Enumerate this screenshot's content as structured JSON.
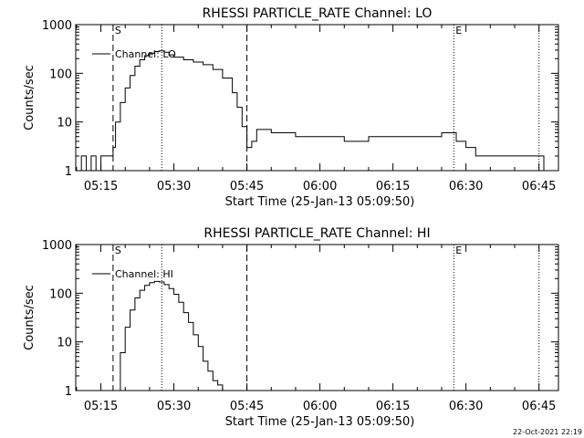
{
  "chart_data": [
    {
      "type": "line",
      "title": "RHESSI PARTICLE_RATE Channel: LO",
      "xlabel": "Start Time (25-Jan-13 05:09:50)",
      "ylabel": "Counts/sec",
      "yscale": "log",
      "ylim": [
        1,
        1000
      ],
      "xlim": [
        "05:09:50",
        "06:49:00"
      ],
      "x_ticks": [
        "05:15",
        "05:30",
        "05:45",
        "06:00",
        "06:15",
        "06:30",
        "06:45"
      ],
      "y_ticks": [
        "1",
        "10",
        "100",
        "1000"
      ],
      "legend": {
        "label": "Channel: LO",
        "position": "top-left"
      },
      "markers": [
        {
          "label": "S",
          "time": "05:17:30",
          "style": "dashed"
        },
        {
          "label": "",
          "time": "05:45:00",
          "style": "dashed"
        },
        {
          "label": "",
          "time": "05:27:30",
          "style": "dotted"
        },
        {
          "label": "E",
          "time": "06:27:30",
          "style": "dotted"
        },
        {
          "label": "",
          "time": "06:45:00",
          "style": "dotted"
        }
      ],
      "series": [
        {
          "name": "Channel: LO",
          "x": [
            "05:10:00",
            "05:11:00",
            "05:12:00",
            "05:13:00",
            "05:14:00",
            "05:15:00",
            "05:16:00",
            "05:17:00",
            "05:17:30",
            "05:18:00",
            "05:19:00",
            "05:20:00",
            "05:21:00",
            "05:22:00",
            "05:23:00",
            "05:24:00",
            "05:25:00",
            "05:26:00",
            "05:27:00",
            "05:28:00",
            "05:29:00",
            "05:30:00",
            "05:32:00",
            "05:34:00",
            "05:36:00",
            "05:38:00",
            "05:40:00",
            "05:42:00",
            "05:43:00",
            "05:44:00",
            "05:45:00",
            "05:46:00",
            "05:47:00",
            "05:50:00",
            "05:55:00",
            "06:00:00",
            "06:05:00",
            "06:10:00",
            "06:15:00",
            "06:20:00",
            "06:25:00",
            "06:27:30",
            "06:28:00",
            "06:29:00",
            "06:30:00",
            "06:31:00",
            "06:32:00",
            "06:34:00",
            "06:36:00",
            "06:38:00",
            "06:40:00",
            "06:42:00",
            "06:44:00",
            "06:46:00"
          ],
          "y": [
            1,
            2,
            1,
            2,
            1,
            2,
            2,
            2,
            3,
            10,
            25,
            50,
            90,
            140,
            190,
            230,
            260,
            280,
            290,
            270,
            240,
            215,
            190,
            170,
            150,
            120,
            80,
            40,
            20,
            8,
            3,
            4,
            7,
            6,
            5,
            5,
            4,
            5,
            5,
            5,
            6,
            6,
            4,
            4,
            3,
            3,
            2,
            2,
            2,
            2,
            2,
            2,
            2,
            1
          ]
        }
      ]
    },
    {
      "type": "line",
      "title": "RHESSI PARTICLE_RATE Channel: HI",
      "xlabel": "Start Time (25-Jan-13 05:09:50)",
      "ylabel": "Counts/sec",
      "yscale": "log",
      "ylim": [
        1,
        1000
      ],
      "xlim": [
        "05:09:50",
        "06:49:00"
      ],
      "x_ticks": [
        "05:15",
        "05:30",
        "05:45",
        "06:00",
        "06:15",
        "06:30",
        "06:45"
      ],
      "y_ticks": [
        "1",
        "10",
        "100",
        "1000"
      ],
      "legend": {
        "label": "Channel: HI",
        "position": "top-left"
      },
      "markers": [
        {
          "label": "S",
          "time": "05:17:30",
          "style": "dashed"
        },
        {
          "label": "",
          "time": "05:45:00",
          "style": "dashed"
        },
        {
          "label": "",
          "time": "05:27:30",
          "style": "dotted"
        },
        {
          "label": "E",
          "time": "06:27:30",
          "style": "dotted"
        },
        {
          "label": "",
          "time": "06:45:00",
          "style": "dotted"
        }
      ],
      "series": [
        {
          "name": "Channel: HI",
          "x": [
            "05:18:00",
            "05:19:00",
            "05:20:00",
            "05:21:00",
            "05:22:00",
            "05:23:00",
            "05:24:00",
            "05:25:00",
            "05:26:00",
            "05:27:00",
            "05:28:00",
            "05:29:00",
            "05:30:00",
            "05:31:00",
            "05:32:00",
            "05:33:00",
            "05:34:00",
            "05:35:00",
            "05:36:00",
            "05:37:00",
            "05:38:00",
            "05:39:00",
            "05:40:00"
          ],
          "y": [
            1,
            6,
            20,
            45,
            80,
            115,
            145,
            165,
            175,
            170,
            150,
            125,
            95,
            65,
            40,
            25,
            14,
            8,
            4,
            2.5,
            1.6,
            1.3,
            1
          ]
        }
      ]
    }
  ],
  "timestamp": "22-Oct-2021 22:19"
}
